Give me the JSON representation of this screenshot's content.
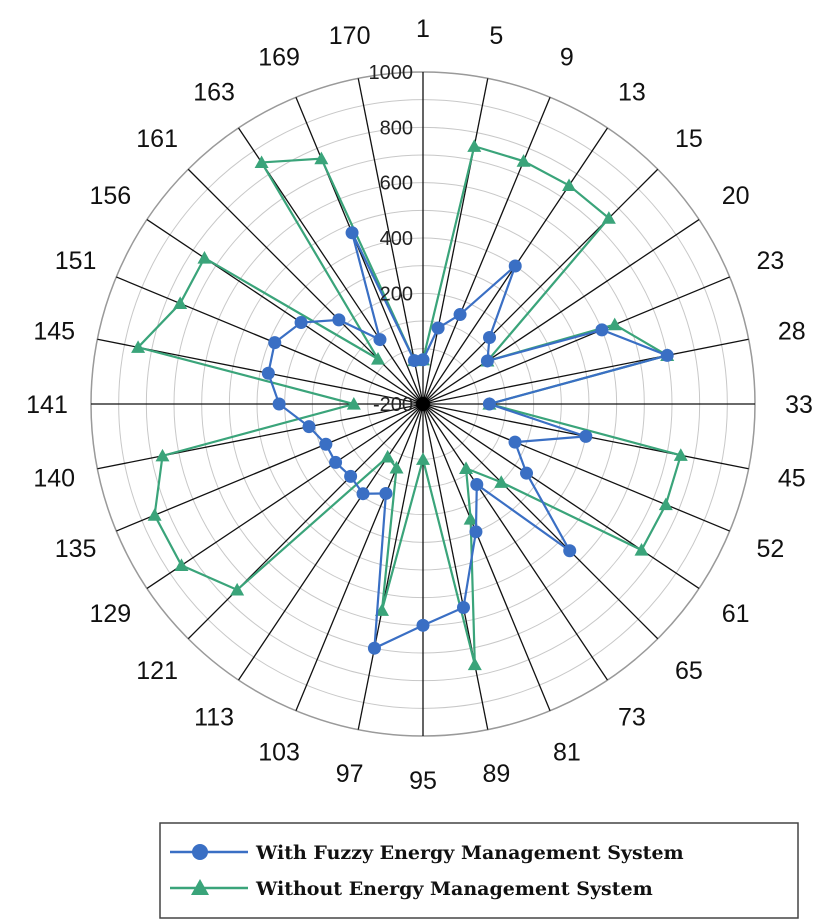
{
  "chart_data": {
    "type": "radar",
    "categories": [
      "1",
      "5",
      "9",
      "13",
      "15",
      "20",
      "23",
      "28",
      "33",
      "45",
      "52",
      "61",
      "65",
      "73",
      "81",
      "89",
      "95",
      "97",
      "103",
      "113",
      "121",
      "129",
      "135",
      "140",
      "141",
      "145",
      "151",
      "156",
      "161",
      "163",
      "169",
      "170"
    ],
    "rlim": [
      -200,
      1000
    ],
    "rticks": [
      -200,
      200,
      400,
      600,
      800,
      1000
    ],
    "rtick_labels": [
      "-200",
      "200",
      "400",
      "600",
      "800",
      "1000"
    ],
    "grid": true,
    "legend_position": "bottom",
    "series": [
      {
        "name": "With Fuzzy Energy Management System",
        "color": "#3a6fc4",
        "marker": "circle",
        "values": [
          -40,
          80,
          150,
          400,
          140,
          80,
          500,
          700,
          40,
          400,
          160,
          250,
          550,
          150,
          300,
          550,
          600,
          700,
          150,
          190,
          170,
          180,
          180,
          220,
          320,
          370,
          380,
          330,
          230,
          80,
          470,
          -40
        ]
      },
      {
        "name": "Without Energy Management System",
        "color": "#3aa47a",
        "marker": "triangle",
        "values": [
          -40,
          750,
          750,
          750,
          750,
          80,
          550,
          700,
          40,
          750,
          750,
          750,
          200,
          80,
          250,
          760,
          0,
          560,
          50,
          30,
          750,
          850,
          850,
          760,
          50,
          850,
          750,
          750,
          30,
          850,
          760,
          -40
        ]
      }
    ]
  }
}
